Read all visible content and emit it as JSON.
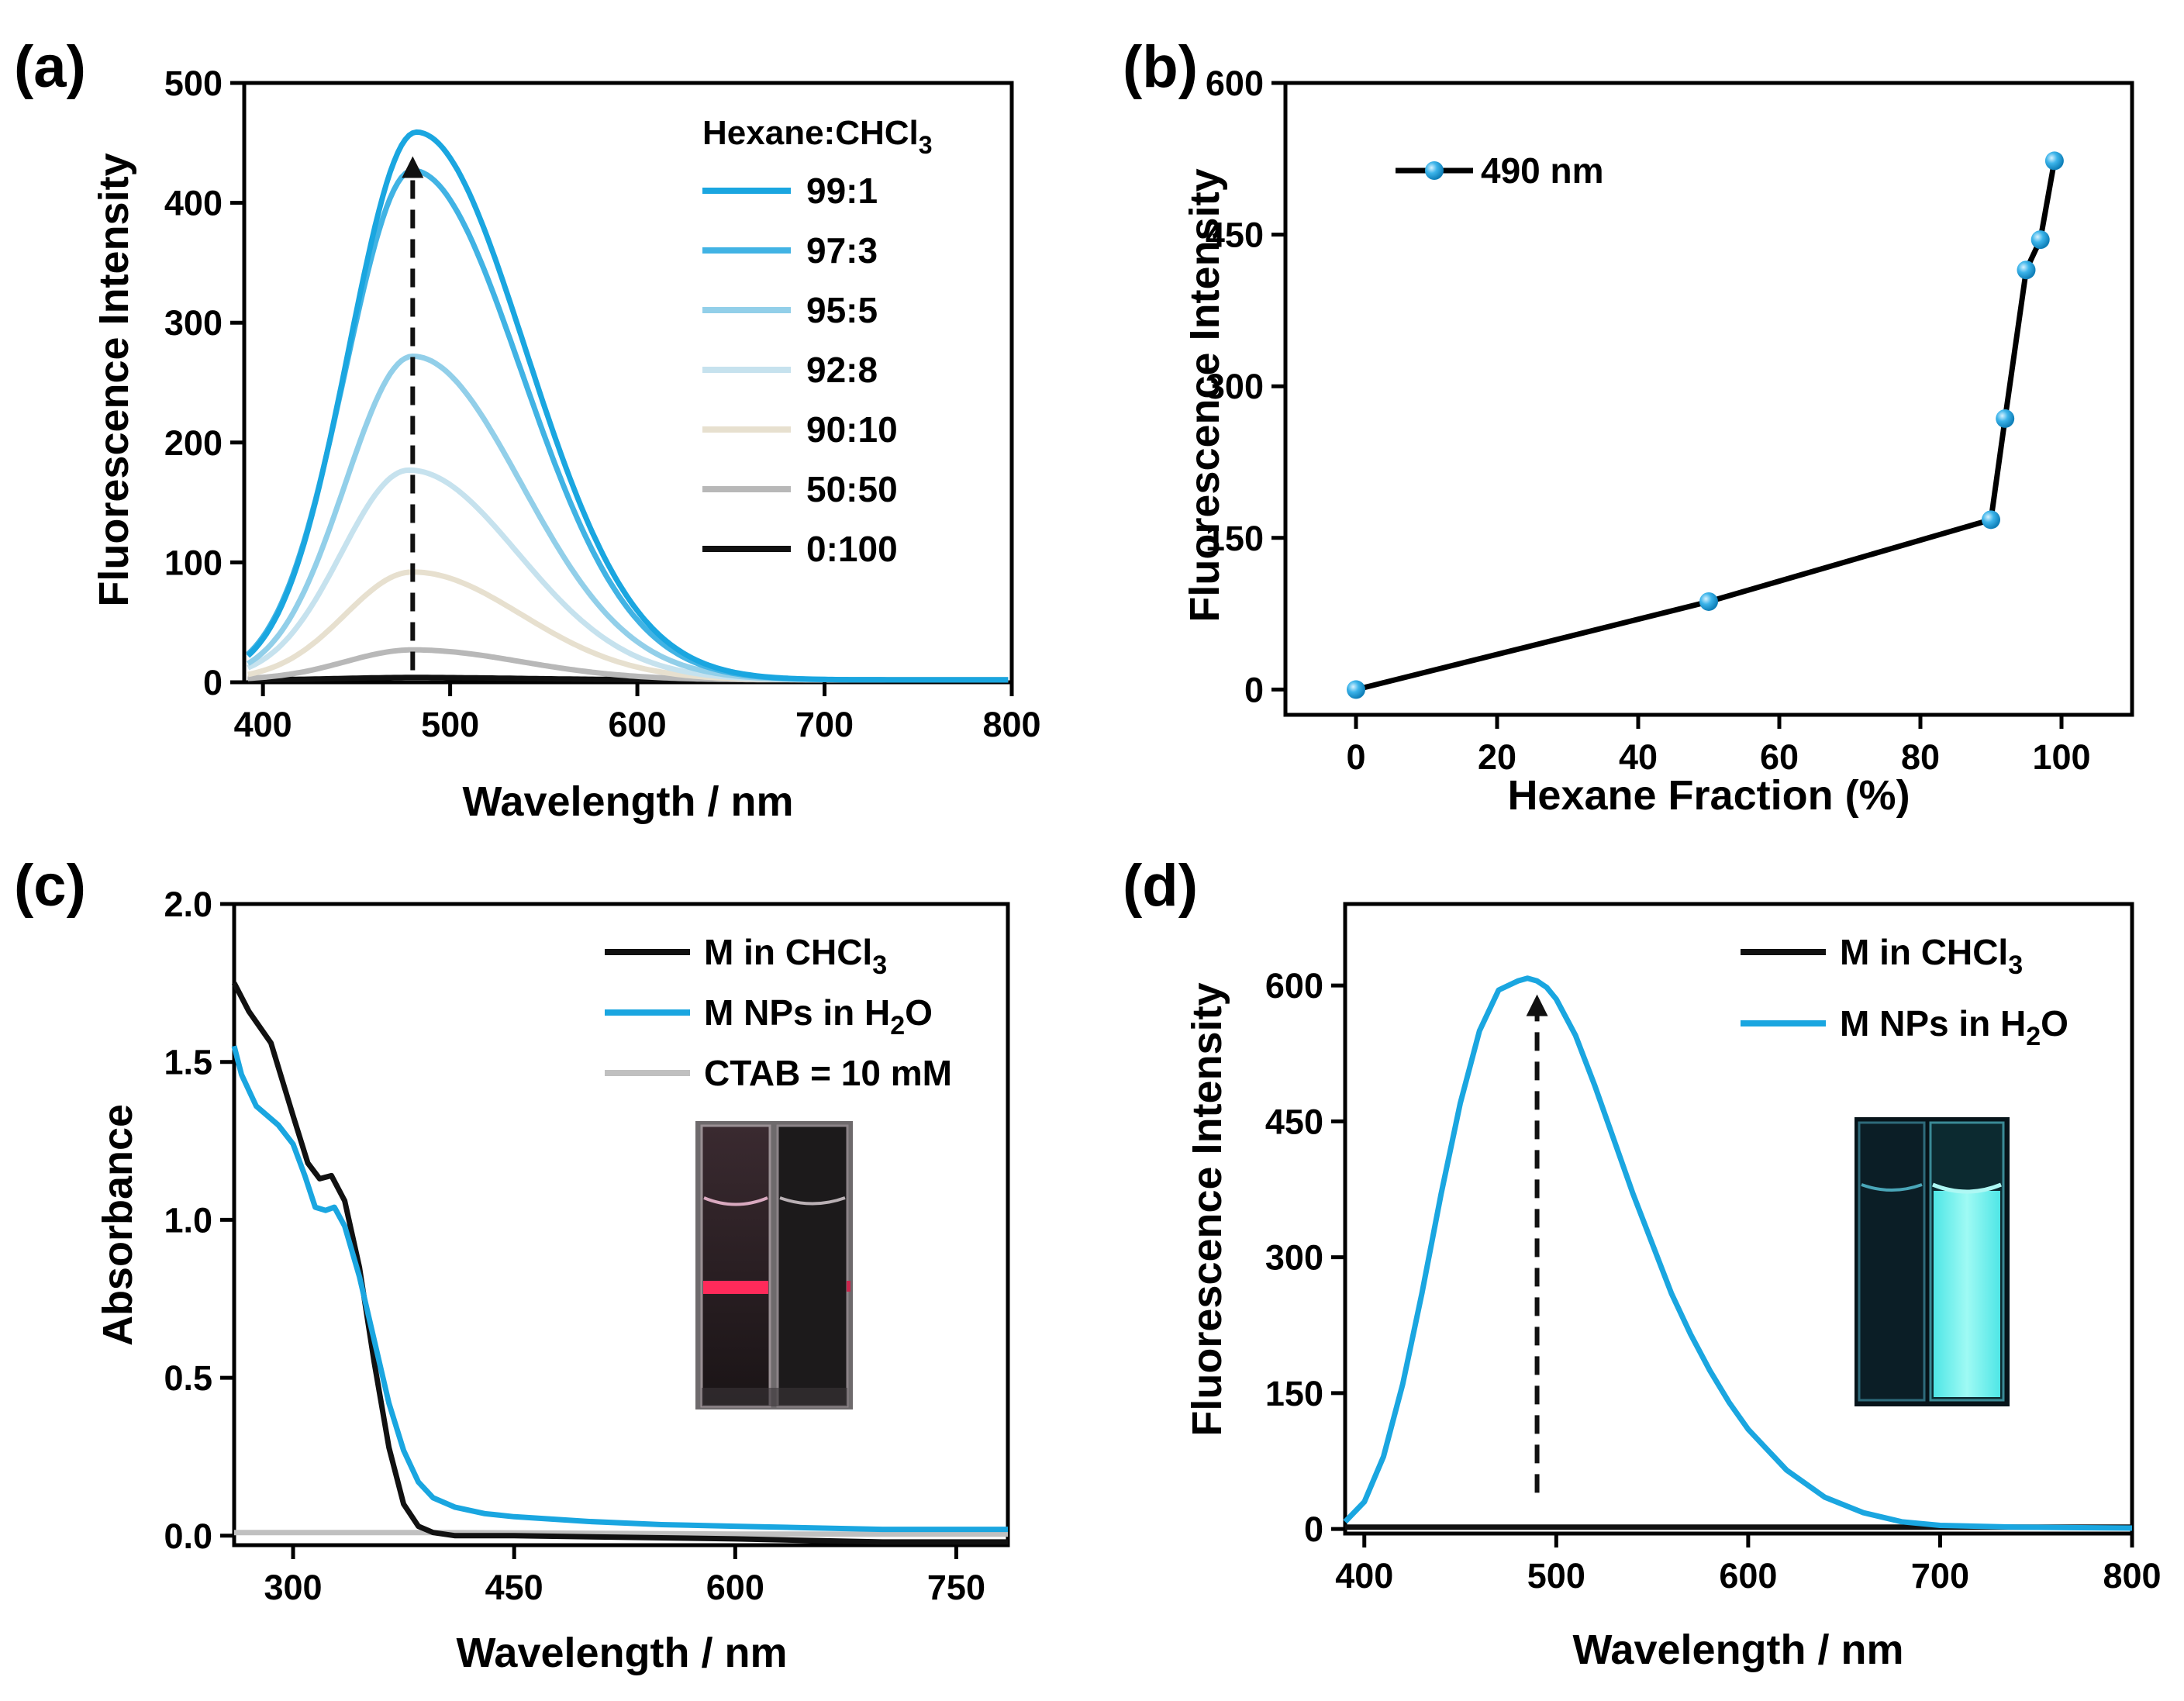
{
  "chart_data": [
    {
      "panel": "(a)",
      "type": "line",
      "xlabel": "Wavelength / nm",
      "ylabel": "Fluorescence Intensity",
      "xlim": [
        390,
        800
      ],
      "ylim": [
        0,
        500
      ],
      "xticks": [
        400,
        500,
        600,
        700,
        800
      ],
      "yticks": [
        0,
        100,
        200,
        300,
        400,
        500
      ],
      "legend_title": "Hexane:CHCl",
      "legend_title_sub": "3",
      "legend_position": "top-right",
      "annotation": "dashed upward arrow at 480 nm from 10 to 435",
      "arrow": {
        "x": 480,
        "y_from": 10,
        "y_to": 435
      },
      "series": [
        {
          "name": "99:1",
          "color": "#1aa6e0",
          "peak_x": 482,
          "peak_y": 457,
          "width": 2.0
        },
        {
          "name": "97:3",
          "color": "#41b3e4",
          "peak_x": 480,
          "peak_y": 425,
          "width": 2.0
        },
        {
          "name": "95:5",
          "color": "#92cfe9",
          "peak_x": 480,
          "peak_y": 270,
          "width": 2.0
        },
        {
          "name": "92:8",
          "color": "#c6e2ee",
          "peak_x": 478,
          "peak_y": 175,
          "width": 2.0
        },
        {
          "name": "90:10",
          "color": "#e7e0cf",
          "peak_x": 480,
          "peak_y": 90,
          "width": 2.0
        },
        {
          "name": "50:50",
          "color": "#b8b8b8",
          "peak_x": 480,
          "peak_y": 25,
          "width": 2.0
        },
        {
          "name": "0:100",
          "color": "#111111",
          "peak_x": 480,
          "peak_y": 2,
          "width": 2.0
        }
      ]
    },
    {
      "panel": "(b)",
      "type": "scatter",
      "xlabel": "Hexane Fraction (%)",
      "ylabel": "Fluorescence Intensity",
      "xlim": [
        -10,
        110
      ],
      "ylim": [
        -25,
        600
      ],
      "xticks": [
        0,
        20,
        40,
        60,
        80,
        100
      ],
      "yticks": [
        0,
        150,
        300,
        450,
        600
      ],
      "legend_position": "top-left",
      "series": [
        {
          "name": "490 nm",
          "color": "#1aa6e0",
          "x": [
            0,
            50,
            90,
            92,
            95,
            97,
            99
          ],
          "y": [
            0,
            87,
            168,
            268,
            415,
            445,
            523
          ]
        }
      ]
    },
    {
      "panel": "(c)",
      "type": "line",
      "xlabel": "Wavelength / nm",
      "ylabel": "Absorbance",
      "xlim": [
        260,
        785
      ],
      "ylim": [
        -0.03,
        2.0
      ],
      "xticks": [
        300,
        450,
        600,
        750
      ],
      "ytick_labels": [
        "0.0",
        "0.5",
        "1.0",
        "1.5",
        "2.0"
      ],
      "legend_position": "top-right",
      "series": [
        {
          "name": "M in CHCl",
          "name_sub": "3",
          "color": "#111111",
          "x": [
            260,
            270,
            285,
            300,
            310,
            318,
            326,
            335,
            345,
            355,
            365,
            375,
            385,
            395,
            410,
            450,
            600,
            700,
            785
          ],
          "y": [
            1.75,
            1.66,
            1.56,
            1.33,
            1.18,
            1.13,
            1.14,
            1.06,
            0.85,
            0.55,
            0.28,
            0.1,
            0.03,
            0.01,
            0.0,
            0.0,
            -0.01,
            -0.02,
            -0.02
          ]
        },
        {
          "name": "M NPs in H",
          "name_sub": "2",
          "name_after": "O",
          "color": "#1aa6e0",
          "x": [
            260,
            265,
            275,
            290,
            300,
            308,
            315,
            322,
            328,
            335,
            345,
            355,
            365,
            375,
            385,
            395,
            410,
            430,
            450,
            500,
            550,
            600,
            650,
            700,
            785
          ],
          "y": [
            1.55,
            1.46,
            1.36,
            1.3,
            1.24,
            1.14,
            1.04,
            1.03,
            1.04,
            0.98,
            0.82,
            0.62,
            0.42,
            0.27,
            0.17,
            0.12,
            0.09,
            0.07,
            0.06,
            0.045,
            0.035,
            0.03,
            0.025,
            0.02,
            0.02
          ]
        },
        {
          "name": "CTAB = 10 mM",
          "color": "#c0c0c0",
          "x": [
            260,
            400,
            600,
            785
          ],
          "y": [
            0.01,
            0.01,
            0.005,
            0.005
          ]
        }
      ]
    },
    {
      "panel": "(d)",
      "type": "line",
      "xlabel": "Wavelength / nm",
      "ylabel": "Fluorescence Intensity",
      "xlim": [
        390,
        800
      ],
      "ylim": [
        -5,
        690
      ],
      "xticks": [
        400,
        500,
        600,
        700,
        800
      ],
      "yticks": [
        0,
        150,
        300,
        450,
        600
      ],
      "legend_position": "top-right",
      "arrow": {
        "x": 490,
        "y_from": 40,
        "y_to": 585
      },
      "series": [
        {
          "name": "M in CHCl",
          "name_sub": "3",
          "color": "#111111",
          "x": [
            390,
            800
          ],
          "y": [
            2,
            2
          ]
        },
        {
          "name": "M NPs in H",
          "name_sub": "2",
          "name_after": "O",
          "color": "#1aa6e0",
          "x": [
            390,
            400,
            410,
            420,
            430,
            440,
            450,
            460,
            470,
            480,
            485,
            490,
            495,
            500,
            510,
            520,
            530,
            540,
            550,
            560,
            570,
            580,
            590,
            600,
            620,
            640,
            660,
            680,
            700,
            740,
            800
          ],
          "y": [
            8,
            30,
            80,
            160,
            260,
            370,
            470,
            550,
            595,
            605,
            608,
            605,
            598,
            585,
            545,
            490,
            430,
            370,
            315,
            260,
            215,
            175,
            140,
            110,
            65,
            35,
            18,
            8,
            4,
            2,
            1
          ]
        }
      ]
    }
  ]
}
